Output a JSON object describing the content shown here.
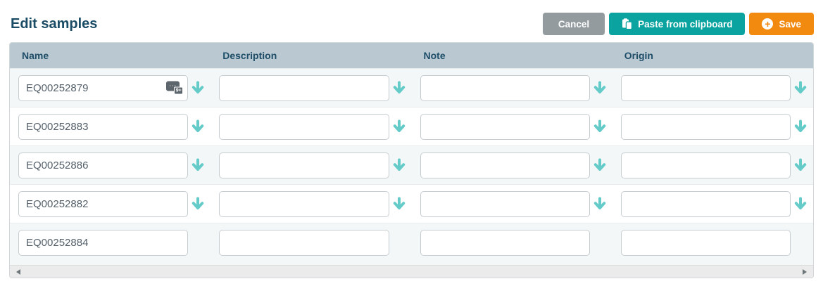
{
  "page": {
    "title": "Edit samples"
  },
  "toolbar": {
    "cancel_label": "Cancel",
    "paste_label": "Paste from clipboard",
    "save_label": "Save",
    "save_icon_glyph": "+"
  },
  "table": {
    "columns": [
      "Name",
      "Description",
      "Note",
      "Origin"
    ],
    "fields": [
      "name",
      "description",
      "note",
      "origin"
    ],
    "rows": [
      {
        "name": "EQ00252879",
        "description": "",
        "note": "",
        "origin": "",
        "arrows": true,
        "extension_badge": {
          "dots": "...",
          "count": "9+"
        }
      },
      {
        "name": "EQ00252883",
        "description": "",
        "note": "",
        "origin": "",
        "arrows": true
      },
      {
        "name": "EQ00252886",
        "description": "",
        "note": "",
        "origin": "",
        "arrows": true
      },
      {
        "name": "EQ00252882",
        "description": "",
        "note": "",
        "origin": "",
        "arrows": true
      },
      {
        "name": "EQ00252884",
        "description": "",
        "note": "",
        "origin": "",
        "arrows": false
      }
    ]
  },
  "icons": {
    "paste_button": "paste-clipboard-icon",
    "save_button": "plus-circle-icon",
    "row_fill": "down-arrow-icon",
    "scrollbar_left": "left-triangle",
    "scrollbar_right": "right-triangle"
  },
  "colors": {
    "title_text": "#1b4c66",
    "header_bg": "#bac9d1",
    "header_text": "#1d4d68",
    "teal_button": "#0aa3a0",
    "orange_button": "#f28a0f",
    "gray_button": "#939b9f",
    "arrow_teal": "#64cbc8",
    "row_alt_bg": "#f4f7f8"
  }
}
